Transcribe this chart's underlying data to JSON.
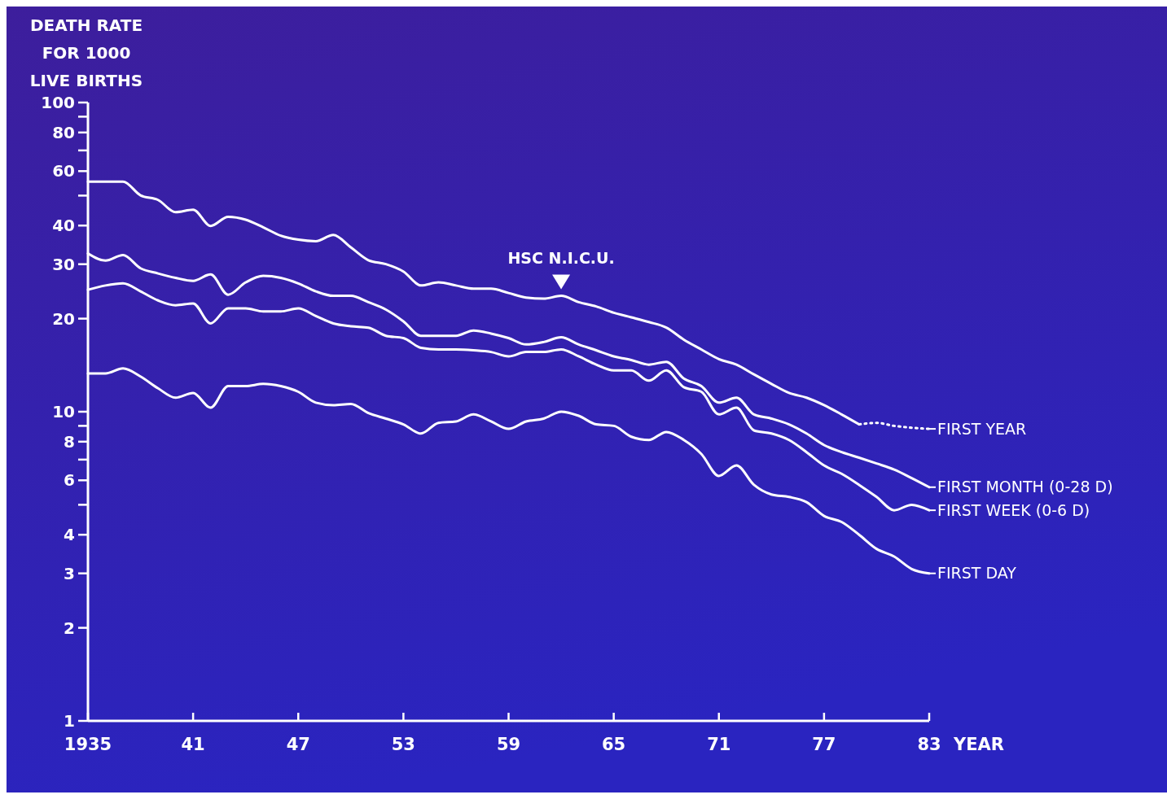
{
  "chart_data": {
    "type": "line",
    "ylabel": "DEATH RATE\nFOR 1000\nLIVE BIRTHS",
    "xlabel": "YEAR",
    "log": "y",
    "grid": false,
    "legend": "right",
    "marker": "none",
    "line_style": "solid",
    "xlim": [
      1935,
      1983
    ],
    "xticks": [
      1935,
      {
        "value": 1941,
        "label": "41"
      },
      {
        "value": 1947,
        "label": "47"
      },
      {
        "value": 1953,
        "label": "53"
      },
      {
        "value": 1959,
        "label": "59"
      },
      {
        "value": 1965,
        "label": "65"
      },
      {
        "value": 1971,
        "label": "71"
      },
      {
        "value": 1977,
        "label": "77"
      },
      {
        "value": 1983,
        "label": "83"
      }
    ],
    "ylim": [
      1,
      100
    ],
    "yticks": [
      1,
      2,
      3,
      4,
      {
        "value": 5,
        "label": null
      },
      6,
      {
        "value": 7,
        "label": null
      },
      8,
      {
        "value": 9,
        "label": null
      },
      10,
      20,
      30,
      40,
      {
        "value": 50,
        "label": null
      },
      60,
      {
        "value": 70,
        "label": null
      },
      80,
      {
        "value": 90,
        "label": null
      },
      100
    ],
    "x": [
      1935,
      1936,
      1937,
      1938,
      1939,
      1940,
      1941,
      1942,
      1943,
      1944,
      1945,
      1946,
      1947,
      1948,
      1949,
      1950,
      1951,
      1952,
      1953,
      1954,
      1955,
      1956,
      1957,
      1958,
      1959,
      1960,
      1961,
      1962,
      1963,
      1964,
      1965,
      1966,
      1967,
      1968,
      1969,
      1970,
      1971,
      1972,
      1973,
      1974,
      1975,
      1976,
      1977,
      1978,
      1979,
      1980,
      1981,
      1982,
      1983
    ],
    "series": [
      {
        "name": "FIRST YEAR",
        "color": "#ffffff",
        "x": [
          1935,
          1936,
          1937,
          1938,
          1939,
          1940,
          1941,
          1942,
          1943,
          1944,
          1945,
          1946,
          1947,
          1948,
          1949,
          1950,
          1951,
          1952,
          1953,
          1954,
          1955,
          1956,
          1957,
          1958,
          1959,
          1960,
          1961,
          1962,
          1963,
          1964,
          1965,
          1966,
          1967,
          1968,
          1969,
          1970,
          1971,
          1972,
          1973,
          1974,
          1975,
          1976,
          1977,
          1978,
          1979
        ],
        "values": [
          55.5,
          55.5,
          55.5,
          50.1,
          48.4,
          44.2,
          45,
          39.9,
          42.7,
          41.8,
          39.5,
          37.1,
          36,
          35.6,
          37.3,
          34,
          30.9,
          30,
          28.4,
          25.6,
          26.2,
          25.6,
          25,
          25,
          24.2,
          23.4,
          23.2,
          23.7,
          22.6,
          21.9,
          20.9,
          20.2,
          19.5,
          18.7,
          17.1,
          15.9,
          14.8,
          14.2,
          13.2,
          12.3,
          11.5,
          11.1,
          10.5,
          9.8,
          9.1
        ]
      },
      {
        "color": "#ffffff",
        "line_style": "dotted",
        "x": [
          1979,
          1980,
          1981,
          1983
        ],
        "values": [
          9.1,
          9.2,
          9.0,
          8.8
        ]
      },
      {
        "name": "FIRST MONTH (0-28 D)",
        "color": "#ffffff",
        "values": [
          32.5,
          30.8,
          32.1,
          29.1,
          28,
          27.1,
          26.5,
          27.8,
          23.9,
          26.2,
          27.5,
          27.1,
          26,
          24.5,
          23.7,
          23.7,
          22.6,
          21.4,
          19.6,
          17.6,
          17.6,
          17.6,
          18.3,
          17.9,
          17.3,
          16.5,
          16.8,
          17.4,
          16.5,
          15.8,
          15.1,
          14.7,
          14.2,
          14.5,
          12.8,
          12.1,
          10.7,
          11.1,
          9.8,
          9.5,
          9.1,
          8.5,
          7.8,
          7.4,
          7.1,
          6.8,
          6.5,
          6.1,
          5.7
        ]
      },
      {
        "name": "FIRST WEEK (0-6 D)",
        "color": "#ffffff",
        "values": [
          24.8,
          25.6,
          26,
          24.5,
          22.9,
          22.1,
          22.4,
          19.3,
          21.6,
          21.6,
          21.1,
          21.1,
          21.6,
          20.4,
          19.3,
          18.9,
          18.7,
          17.6,
          17.3,
          16.1,
          15.9,
          15.9,
          15.8,
          15.6,
          15.1,
          15.6,
          15.6,
          15.9,
          15.1,
          14.2,
          13.6,
          13.6,
          12.6,
          13.6,
          12,
          11.6,
          9.8,
          10.3,
          8.7,
          8.5,
          8.1,
          7.4,
          6.7,
          6.3,
          5.8,
          5.3,
          4.8,
          5,
          4.8
        ]
      },
      {
        "name": "FIRST DAY",
        "color": "#ffffff",
        "values": [
          13.3,
          13.3,
          13.8,
          13,
          11.9,
          11.1,
          11.5,
          10.3,
          12.1,
          12.1,
          12.3,
          12.1,
          11.6,
          10.7,
          10.5,
          10.6,
          9.9,
          9.5,
          9.1,
          8.5,
          9.2,
          9.3,
          9.8,
          9.3,
          8.8,
          9.3,
          9.5,
          10,
          9.7,
          9.1,
          9,
          8.3,
          8.1,
          8.6,
          8.1,
          7.3,
          6.2,
          6.7,
          5.8,
          5.4,
          5.3,
          5.1,
          4.6,
          4.4,
          4,
          3.6,
          3.4,
          3.1,
          3
        ]
      }
    ],
    "annotations": [
      {
        "text": "HSC N.I.C.U.",
        "x": 1962,
        "y": 23.7
      }
    ]
  }
}
